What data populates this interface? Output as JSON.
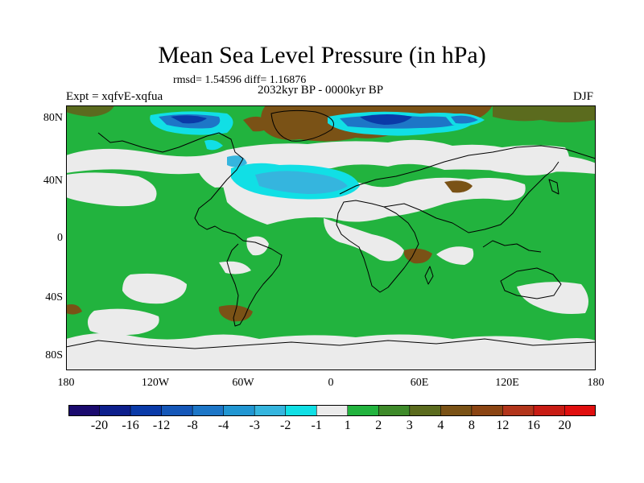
{
  "title": "Mean Sea Level Pressure (in hPa)",
  "stats": "rmsd= 1.54596 diff= 1.16876",
  "experiment": "Expt = xqfvE-xqfua",
  "period": "2032kyr BP - 0000kyr BP",
  "season": "DJF",
  "lat_labels": [
    "80N",
    "40N",
    "0",
    "40S",
    "80S"
  ],
  "lon_labels": [
    "180",
    "120W",
    "60W",
    "0",
    "60E",
    "120E",
    "180"
  ],
  "colorbar": {
    "labels": [
      "-20",
      "-16",
      "-12",
      "-8",
      "-4",
      "-3",
      "-2",
      "-1",
      "1",
      "2",
      "3",
      "4",
      "8",
      "12",
      "16",
      "20"
    ],
    "colors": [
      "#1a0a6e",
      "#0d1f8c",
      "#0a3aa8",
      "#1557b8",
      "#1d76c7",
      "#2196d2",
      "#35b5de",
      "#11dfe5",
      "#ebebeb",
      "#22b33e",
      "#3e8a2a",
      "#5b6b1e",
      "#7a5216",
      "#8b4513",
      "#b2351b",
      "#c81c14",
      "#e00f0f"
    ]
  },
  "legend_colors": {
    "land_fill": "#22b33e",
    "neutral": "#ebebeb",
    "cyan": "#11dfe5",
    "deep_blue": "#0a3aa8",
    "brown": "#7a5216",
    "olive": "#5b6b1e"
  }
}
